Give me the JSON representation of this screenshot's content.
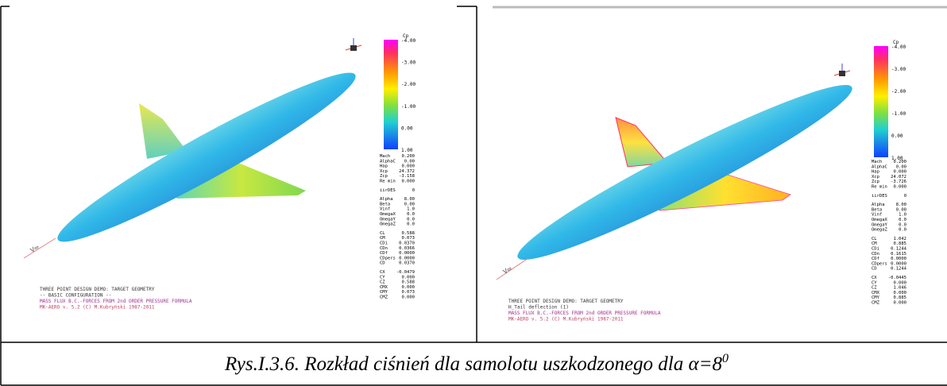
{
  "panels": [
    {
      "colorbar": {
        "title": "Cp",
        "labels": [
          "-4.00",
          "-3.00",
          "-2.00",
          "-1.00",
          "0.00",
          "1.00"
        ]
      },
      "params": [
        [
          "Mach",
          "0.200"
        ],
        [
          "AlphaC",
          "0.00"
        ],
        [
          "Hap",
          "0.000"
        ],
        [
          "Xcp",
          "24.372"
        ],
        [
          "Zcp",
          "-3.158"
        ],
        [
          "Re min",
          "0.000"
        ],
        [
          "iirDES",
          "0"
        ],
        [
          "Alpha",
          "8.00"
        ],
        [
          "Beta",
          "0.00"
        ],
        [
          "Vinf",
          "1.0"
        ],
        [
          "OmegaX",
          "0.0"
        ],
        [
          "OmegaY",
          "0.0"
        ],
        [
          "OmegaZ",
          "0.0"
        ],
        [
          "CL",
          "0.588"
        ],
        [
          "CM",
          "0.073"
        ],
        [
          "CDi",
          "0.0370"
        ],
        [
          "CDn",
          "0.0366"
        ],
        [
          "CDf",
          "0.0000"
        ],
        [
          "CDpers",
          "0.0000"
        ],
        [
          "CD",
          "0.0370"
        ],
        [
          "CX",
          "-0.0479"
        ],
        [
          "CY",
          "0.000"
        ],
        [
          "CZ",
          "0.588"
        ],
        [
          "CMX",
          "0.000"
        ],
        [
          "CMY",
          "0.073"
        ],
        [
          "CMZ",
          "0.000"
        ]
      ],
      "footer": [
        "THREE POINT DESIGN DEMO: TARGET GEOMETRY",
        "-- BASIC CONFIGURATION --",
        "MASS FLUX B.C.-FORCES FROM 2nd ORDER PRESSURE FORMULA",
        "MK-AERO v. 5.2   (C) M.Kubryński 1987-2011"
      ]
    },
    {
      "colorbar": {
        "title": "Cp",
        "labels": [
          "-4.00",
          "-3.00",
          "-2.00",
          "-1.00",
          "0.00",
          "1.00"
        ]
      },
      "params": [
        [
          "Mach",
          "0.200"
        ],
        [
          "AlphaC",
          "0.00"
        ],
        [
          "Hap",
          "0.000"
        ],
        [
          "Xcp",
          "24.072"
        ],
        [
          "Zcp",
          "-3.726"
        ],
        [
          "Re min",
          "0.000"
        ],
        [
          "iirDES",
          "0"
        ],
        [
          "Alpha",
          "8.00"
        ],
        [
          "Beta",
          "0.00"
        ],
        [
          "Vinf",
          "1.0"
        ],
        [
          "OmegaX",
          "0.0"
        ],
        [
          "OmegaY",
          "0.0"
        ],
        [
          "OmegaZ",
          "0.0"
        ],
        [
          "CL",
          "1.042"
        ],
        [
          "CM",
          "0.885"
        ],
        [
          "CDi",
          "0.1244"
        ],
        [
          "CDn",
          "0.1615"
        ],
        [
          "CDf",
          "0.0000"
        ],
        [
          "CDpers",
          "0.0000"
        ],
        [
          "CD",
          "0.1244"
        ],
        [
          "CX",
          "-0.0445"
        ],
        [
          "CY",
          "0.000"
        ],
        [
          "CZ",
          "1.046"
        ],
        [
          "CMX",
          "0.000"
        ],
        [
          "CMY",
          "0.885"
        ],
        [
          "CMZ",
          "0.000"
        ]
      ],
      "footer": [
        "THREE POINT DESIGN DEMO: TARGET GEOMETRY",
        "H_Tail deflection (1)",
        "MASS FLUX B.C.-FORCES FROM 2nd ORDER PRESSURE FORMULA",
        "MK-AERO v. 5.2   (C) M.Kubryński 1987-2011"
      ]
    }
  ],
  "caption": {
    "text": "Rys.I.3.6. Rozkład ciśnień dla samolotu uszkodzonego dla α=8",
    "superscript": "0"
  }
}
